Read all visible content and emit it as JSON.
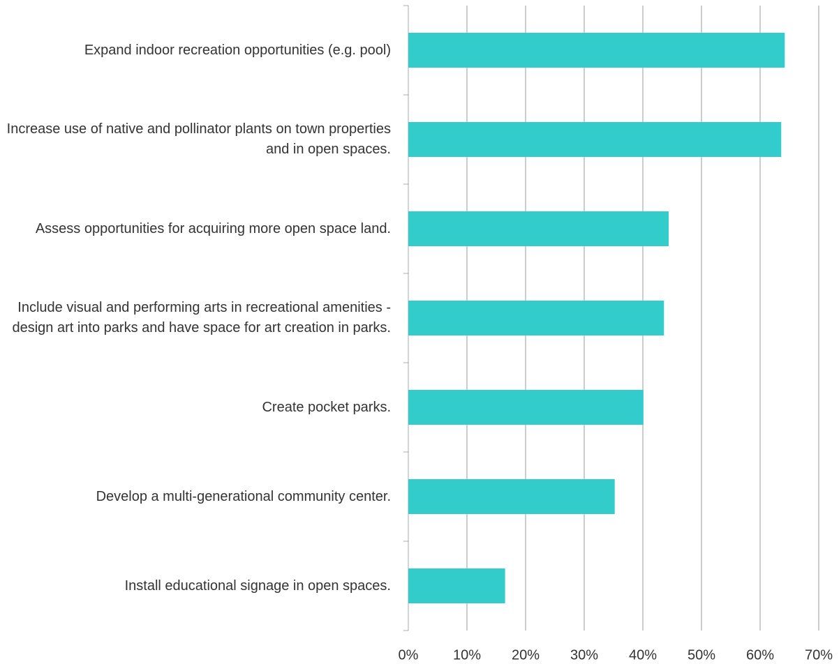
{
  "chart_data": {
    "type": "bar",
    "orientation": "horizontal",
    "categories": [
      "Expand indoor recreation opportunities (e.g. pool)",
      "Increase use of native and pollinator plants on town properties and in open spaces.",
      "Assess opportunities for acquiring more open space land.",
      "Include visual and performing arts in recreational amenities - design art into parks and have space for art creation in parks.",
      "Create pocket parks.",
      "Develop a multi-generational community center.",
      "Install educational signage in open spaces."
    ],
    "values": [
      64.2,
      63.6,
      44.4,
      43.6,
      40.1,
      35.2,
      16.5
    ],
    "color": "#33cccc",
    "xlim": [
      0,
      70
    ],
    "xticks": [
      {
        "value": 0,
        "label": "0%"
      },
      {
        "value": 10,
        "label": "10%"
      },
      {
        "value": 20,
        "label": "20%"
      },
      {
        "value": 30,
        "label": "30%"
      },
      {
        "value": 40,
        "label": "40%"
      },
      {
        "value": 50,
        "label": "50%"
      },
      {
        "value": 60,
        "label": "60%"
      },
      {
        "value": 70,
        "label": "70%"
      }
    ],
    "grid": true
  }
}
